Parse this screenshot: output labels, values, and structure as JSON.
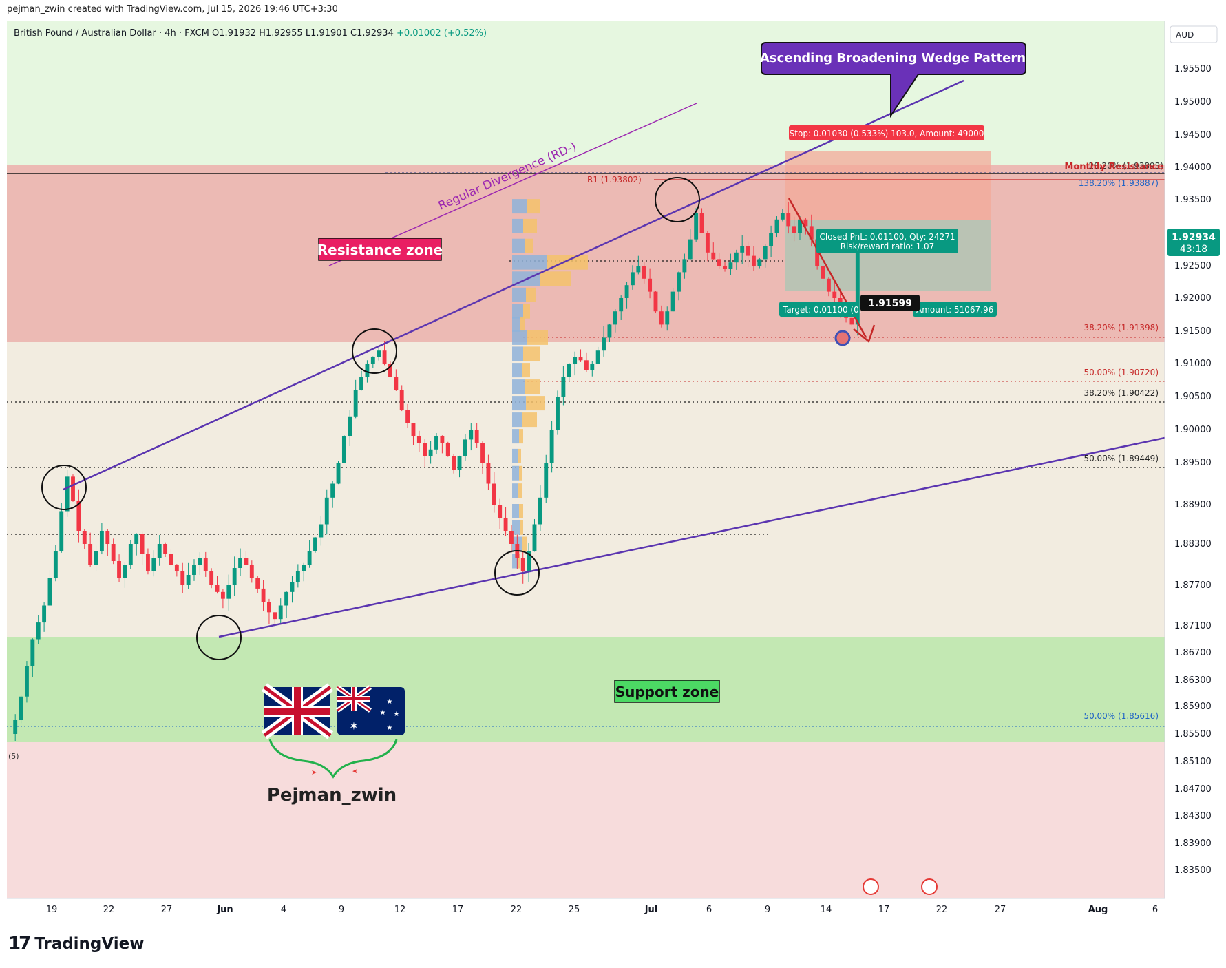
{
  "header": {
    "credit": "pejman_zwin created with TradingView.com, Jul 15, 2026 19:46 UTC+3:30"
  },
  "symbol": {
    "name": "British Pound / Australian Dollar",
    "interval": "4h",
    "exchange": "FXCM",
    "open": "O1.91932",
    "high": "H1.92955",
    "low": "L1.91901",
    "close": "C1.92934",
    "change": "+0.01002 (+0.52%)"
  },
  "currency": "AUD",
  "price_badge": {
    "price": "1.92934",
    "countdown": "43:18"
  },
  "annotations": {
    "pattern_title": "Ascending Broadening Wedge Pattern",
    "divergence": "Regular Divergence (RD-)",
    "resistance_zone": "Resistance zone",
    "support_zone": "Support zone",
    "stop_label": "Stop: 0.01030 (0.533%) 103.0, Amount: 49000",
    "closed_pnl": "Closed PnL: 0.01100, Qty: 24271",
    "risk_reward": "Risk/reward ratio: 1.07",
    "target_label": "Target: 0.01100 (0.",
    "target_amount": "Amount: 51067.96",
    "current_marker": "1.91599",
    "pivot_r1": "R1 (1.93802)",
    "monthly_resistance": "Monthly Resistance",
    "fib_28": "28.20% (1.93893)",
    "fib_138": "138.20% (1.93887)",
    "fib_382_a": "38.20% (1.91398)",
    "fib_50_a": "50.00% (1.90720)",
    "fib_382_b": "38.20% (1.90422)",
    "fib_50_b": "50.00% (1.89449)",
    "fib_50_c": "50.00% (1.85616)",
    "indicator_paren": "(5)",
    "author": "Pejman_zwin"
  },
  "brand": {
    "name": "TradingView",
    "mark": "17"
  },
  "colors": {
    "resistance": "#ef9a9a",
    "support": "#a5d6a7",
    "wedge": "#5b35b0",
    "divergence": "#9c27b0",
    "bull": "#089981",
    "bear": "#f23645",
    "pattern_bg": "#6a31b8",
    "resistance_label_bg": "#e91e63",
    "support_label_bg": "#4cd964"
  },
  "chart_data": {
    "type": "candlestick",
    "ylim": [
      1.832,
      1.961
    ],
    "y_ticks": [
      "1.95500",
      "1.95000",
      "1.94500",
      "1.94000",
      "1.93500",
      "1.93000",
      "1.92500",
      "1.92000",
      "1.91500",
      "1.91000",
      "1.90500",
      "1.90000",
      "1.89500",
      "1.88900",
      "1.88300",
      "1.87700",
      "1.87100",
      "1.86700",
      "1.86300",
      "1.85900",
      "1.85500",
      "1.85100",
      "1.84700",
      "1.84300",
      "1.83900",
      "1.83500"
    ],
    "x_ticks": [
      "19",
      "22",
      "27",
      "Jun",
      "4",
      "9",
      "12",
      "17",
      "22",
      "25",
      "Jul",
      "6",
      "9",
      "14",
      "17",
      "22",
      "27",
      "Aug",
      "6"
    ],
    "zones": {
      "resistance": [
        1.9135,
        1.94
      ],
      "support": [
        1.8535,
        1.8695
      ]
    },
    "levels": {
      "monthly_resistance": 1.9389,
      "pivot_r1": 1.93802,
      "fib_38_2_upper": 1.91398,
      "fib_50_upper": 1.9072,
      "fib_38_2_mid": 1.90422,
      "fib_50_mid": 1.89449,
      "fib_50_low": 1.85616,
      "dotted_1": 1.884,
      "dotted_2": 1.926
    },
    "wedge": {
      "upper": [
        [
          "May 20",
          1.8905
        ],
        [
          "Jul 17",
          1.953
        ]
      ],
      "lower": [
        [
          "Jun 1",
          1.8705
        ],
        [
          "Aug 6",
          1.8995
        ]
      ]
    },
    "closes": [
      1.857,
      1.8605,
      1.865,
      1.869,
      1.8715,
      1.874,
      1.878,
      1.882,
      1.888,
      1.893,
      1.8895,
      1.885,
      1.883,
      1.88,
      1.882,
      1.885,
      1.883,
      1.8805,
      1.878,
      1.88,
      1.883,
      1.8845,
      1.8815,
      1.879,
      1.881,
      1.883,
      1.8815,
      1.88,
      1.879,
      1.877,
      1.8785,
      1.88,
      1.881,
      1.879,
      1.877,
      1.876,
      1.875,
      1.877,
      1.8795,
      1.881,
      1.88,
      1.878,
      1.8765,
      1.8745,
      1.873,
      1.872,
      1.874,
      1.876,
      1.8775,
      1.879,
      1.88,
      1.882,
      1.884,
      1.886,
      1.89,
      1.892,
      1.895,
      1.899,
      1.902,
      1.906,
      1.908,
      1.91,
      1.911,
      1.912,
      1.91,
      1.908,
      1.906,
      1.903,
      1.901,
      1.899,
      1.898,
      1.896,
      1.897,
      1.899,
      1.898,
      1.896,
      1.894,
      1.896,
      1.8985,
      1.9,
      1.898,
      1.895,
      1.892,
      1.889,
      1.887,
      1.885,
      1.883,
      1.881,
      1.879,
      1.882,
      1.886,
      1.89,
      1.895,
      1.9,
      1.905,
      1.908,
      1.91,
      1.911,
      1.9105,
      1.909,
      1.91,
      1.912,
      1.914,
      1.916,
      1.918,
      1.92,
      1.922,
      1.924,
      1.925,
      1.923,
      1.921,
      1.918,
      1.916,
      1.918,
      1.921,
      1.924,
      1.926,
      1.929,
      1.933,
      1.93,
      1.927,
      1.926,
      1.925,
      1.9245,
      1.9255,
      1.927,
      1.928,
      1.9265,
      1.925,
      1.926,
      1.928,
      1.93,
      1.932,
      1.933,
      1.931,
      1.93,
      1.932,
      1.931,
      1.929,
      1.925,
      1.923,
      1.921,
      1.92,
      1.918,
      1.917,
      1.916,
      1.9293
    ]
  }
}
